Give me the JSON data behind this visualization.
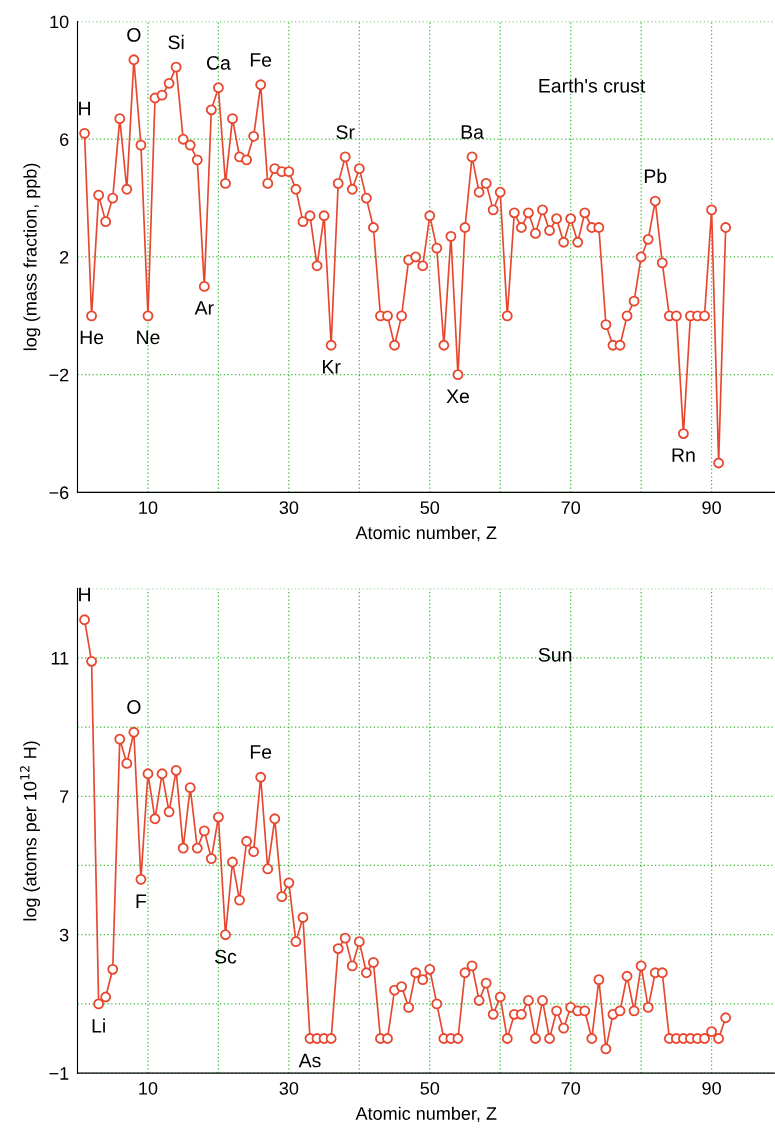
{
  "chart_data": [
    {
      "type": "line",
      "ylabel": "log (mass fraction, ppb)",
      "xlabel": "Atomic number, Z",
      "xlim": [
        0,
        99
      ],
      "ylim": [
        -6,
        10
      ],
      "xticks": [
        {
          "value": 10,
          "label": "10"
        },
        {
          "value": 20,
          "label": null
        },
        {
          "value": 30,
          "label": "30"
        },
        {
          "value": 40,
          "label": null
        },
        {
          "value": 50,
          "label": "50"
        },
        {
          "value": 60,
          "label": null
        },
        {
          "value": 70,
          "label": "70"
        },
        {
          "value": 80,
          "label": null
        },
        {
          "value": 90,
          "label": "90"
        }
      ],
      "yticks": [
        10,
        6,
        2,
        -2,
        -6
      ],
      "grid": true,
      "marker": "circle",
      "line_style": "solid",
      "legend": false,
      "series": [
        {
          "color": "#e8472f",
          "x": [
            1,
            2,
            3,
            4,
            5,
            6,
            7,
            8,
            9,
            10,
            11,
            12,
            13,
            14,
            15,
            16,
            17,
            18,
            19,
            20,
            21,
            22,
            23,
            24,
            25,
            26,
            27,
            28,
            29,
            30,
            31,
            32,
            33,
            34,
            35,
            36,
            37,
            38,
            39,
            40,
            41,
            42,
            43,
            44,
            45,
            46,
            47,
            48,
            49,
            50,
            51,
            52,
            53,
            54,
            55,
            56,
            57,
            58,
            59,
            60,
            61,
            62,
            63,
            64,
            65,
            66,
            67,
            68,
            69,
            70,
            71,
            72,
            73,
            74,
            75,
            76,
            77,
            78,
            79,
            80,
            81,
            82,
            83,
            84,
            85,
            86,
            87,
            88,
            89,
            90,
            91,
            92
          ],
          "values": [
            6.2,
            0,
            4.1,
            3.2,
            4.0,
            6.7,
            4.3,
            8.7,
            5.8,
            0,
            7.4,
            7.5,
            7.9,
            8.45,
            6.0,
            5.8,
            5.3,
            1.0,
            7.0,
            7.75,
            4.5,
            6.7,
            5.4,
            5.3,
            6.1,
            7.85,
            4.5,
            5.0,
            4.9,
            4.9,
            4.3,
            3.2,
            3.4,
            1.7,
            3.4,
            -1.0,
            4.5,
            5.4,
            4.3,
            5.0,
            4.0,
            3.0,
            0,
            0,
            -1.0,
            0,
            1.9,
            2.0,
            1.7,
            3.4,
            2.3,
            -1.0,
            2.7,
            -2.0,
            3.0,
            5.4,
            4.2,
            4.5,
            3.6,
            4.2,
            0,
            3.5,
            3.0,
            3.5,
            2.8,
            3.6,
            2.9,
            3.3,
            2.5,
            3.3,
            2.5,
            3.5,
            3.0,
            3.0,
            -0.3,
            -1.0,
            -1.0,
            0,
            0.5,
            2.0,
            2.6,
            3.9,
            1.8,
            0,
            0,
            -4.0,
            0,
            0,
            0,
            3.6,
            -5.0,
            3.0
          ]
        }
      ],
      "annotations": [
        {
          "text": "H",
          "x": 1,
          "y": 6.2
        },
        {
          "text": "He",
          "x": 2,
          "y": 0
        },
        {
          "text": "O",
          "x": 8,
          "y": 8.7
        },
        {
          "text": "Ne",
          "x": 10,
          "y": 0
        },
        {
          "text": "Si",
          "x": 14,
          "y": 8.45
        },
        {
          "text": "Ar",
          "x": 18,
          "y": 1.0
        },
        {
          "text": "Ca",
          "x": 20,
          "y": 7.75
        },
        {
          "text": "Fe",
          "x": 26,
          "y": 7.85
        },
        {
          "text": "Kr",
          "x": 36,
          "y": -1.0
        },
        {
          "text": "Sr",
          "x": 38,
          "y": 5.4
        },
        {
          "text": "Xe",
          "x": 54,
          "y": -2.0
        },
        {
          "text": "Ba",
          "x": 56,
          "y": 5.4
        },
        {
          "text": "Pb",
          "x": 82,
          "y": 3.9
        },
        {
          "text": "Rn",
          "x": 86,
          "y": -4.0
        },
        "Earth's crust"
      ]
    },
    {
      "type": "line",
      "ylabel": "log (atoms per 10$^{12}$ H)",
      "xlabel": "Atomic number, Z",
      "xlim": [
        0,
        99
      ],
      "ylim": [
        -1,
        13
      ],
      "xticks": [
        {
          "value": 10,
          "label": "10"
        },
        {
          "value": 20,
          "label": null
        },
        {
          "value": 30,
          "label": "30"
        },
        {
          "value": 40,
          "label": null
        },
        {
          "value": 50,
          "label": "50"
        },
        {
          "value": 60,
          "label": null
        },
        {
          "value": 70,
          "label": "70"
        },
        {
          "value": 80,
          "label": null
        },
        {
          "value": 90,
          "label": "90"
        }
      ],
      "yticks": [
        {
          "value": -1,
          "label": "−1"
        },
        {
          "value": 1,
          "label": null
        },
        {
          "value": 3,
          "label": "3"
        },
        {
          "value": 5,
          "label": null
        },
        {
          "value": 7,
          "label": "7"
        },
        {
          "value": 9,
          "label": null
        },
        {
          "value": 11,
          "label": "11"
        },
        {
          "value": 13,
          "label": null
        }
      ],
      "grid": true,
      "marker": "circle",
      "line_style": "solid",
      "legend": false,
      "series": [
        {
          "color": "#e8472f",
          "x": [
            1,
            2,
            3,
            4,
            5,
            6,
            7,
            8,
            9,
            10,
            11,
            12,
            13,
            14,
            15,
            16,
            17,
            18,
            19,
            20,
            21,
            22,
            23,
            24,
            25,
            26,
            27,
            28,
            29,
            30,
            31,
            32,
            33,
            34,
            35,
            36,
            37,
            38,
            39,
            40,
            41,
            42,
            43,
            44,
            45,
            46,
            47,
            48,
            49,
            50,
            51,
            52,
            53,
            54,
            55,
            56,
            57,
            58,
            59,
            60,
            61,
            62,
            63,
            64,
            65,
            66,
            67,
            68,
            69,
            70,
            71,
            72,
            73,
            74,
            75,
            76,
            77,
            78,
            79,
            80,
            81,
            82,
            83,
            84,
            85,
            86,
            87,
            88,
            89,
            90,
            91,
            92
          ],
          "values": [
            12.1,
            10.9,
            1.0,
            1.2,
            2.0,
            8.65,
            7.95,
            8.85,
            4.6,
            7.65,
            6.35,
            7.65,
            6.55,
            7.75,
            5.5,
            7.25,
            5.5,
            6.0,
            5.2,
            6.4,
            3.0,
            5.1,
            4.0,
            5.7,
            5.4,
            7.55,
            4.9,
            6.35,
            4.1,
            4.5,
            2.8,
            3.5,
            0,
            0,
            0,
            0,
            2.6,
            2.9,
            2.1,
            2.8,
            1.9,
            2.2,
            0,
            0,
            1.4,
            1.5,
            0.9,
            1.9,
            1.7,
            2.0,
            1.0,
            0,
            0,
            0,
            1.9,
            2.1,
            1.1,
            1.6,
            0.7,
            1.2,
            0,
            0.7,
            0.7,
            1.1,
            0,
            1.1,
            0,
            0.8,
            0.3,
            0.9,
            0.8,
            0.8,
            0,
            1.7,
            -0.3,
            0.7,
            0.8,
            1.8,
            0.8,
            2.1,
            0.9,
            1.9,
            1.9,
            0,
            0,
            0,
            0,
            0,
            0,
            0.2,
            0,
            0.6
          ]
        }
      ],
      "annotations": [
        {
          "text": "H",
          "x": 1,
          "y": 12.1
        },
        {
          "text": "Li",
          "x": 3,
          "y": 1.0
        },
        {
          "text": "O",
          "x": 8,
          "y": 8.85
        },
        {
          "text": "F",
          "x": 9,
          "y": 4.6
        },
        {
          "text": "Sc",
          "x": 21,
          "y": 3.0
        },
        {
          "text": "Fe",
          "x": 26,
          "y": 7.55
        },
        {
          "text": "As",
          "x": 33,
          "y": 0
        },
        "Sun"
      ]
    }
  ]
}
